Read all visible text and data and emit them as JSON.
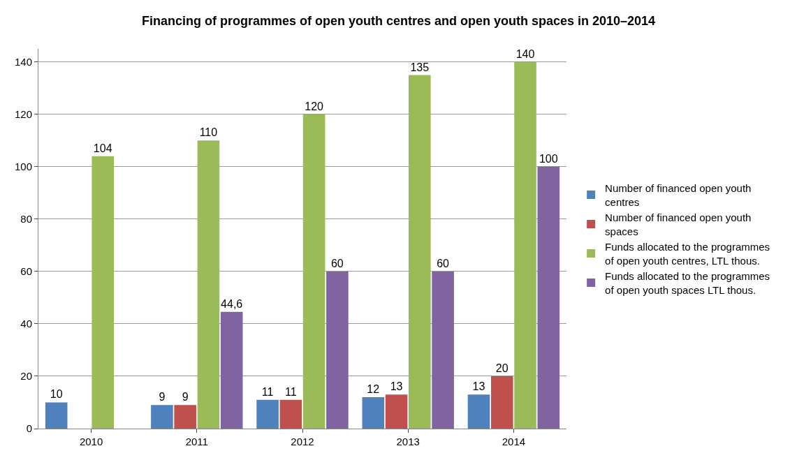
{
  "chart_data": {
    "type": "bar",
    "title": "Financing of programmes of open youth centres and open youth spaces in 2010–2014",
    "categories": [
      "2010",
      "2011",
      "2012",
      "2013",
      "2014"
    ],
    "series": [
      {
        "name": "Number of financed open youth centres",
        "color": "#4f81bd",
        "values": [
          10,
          9,
          11,
          12,
          13
        ],
        "value_labels": [
          "10",
          "9",
          "11",
          "12",
          "13"
        ]
      },
      {
        "name": "Number of financed open youth spaces",
        "color": "#c0504d",
        "values": [
          null,
          9,
          11,
          13,
          20
        ],
        "value_labels": [
          null,
          "9",
          "11",
          "13",
          "20"
        ]
      },
      {
        "name": "Funds allocated to the programmes of open youth centres, LTL thous.",
        "color": "#9bbb59",
        "values": [
          104,
          110,
          120,
          135,
          140
        ],
        "value_labels": [
          "104",
          "110",
          "120",
          "135",
          "140"
        ]
      },
      {
        "name": "Funds allocated to the programmes of open youth spaces LTL thous.",
        "color": "#8064a2",
        "values": [
          null,
          44.6,
          60,
          60,
          100
        ],
        "value_labels": [
          null,
          "44,6",
          "60",
          "60",
          "100"
        ]
      }
    ],
    "ylim": [
      0,
      145
    ],
    "yticks": [
      0,
      20,
      40,
      60,
      80,
      100,
      120,
      140
    ],
    "grid": "y",
    "legend": "right"
  }
}
